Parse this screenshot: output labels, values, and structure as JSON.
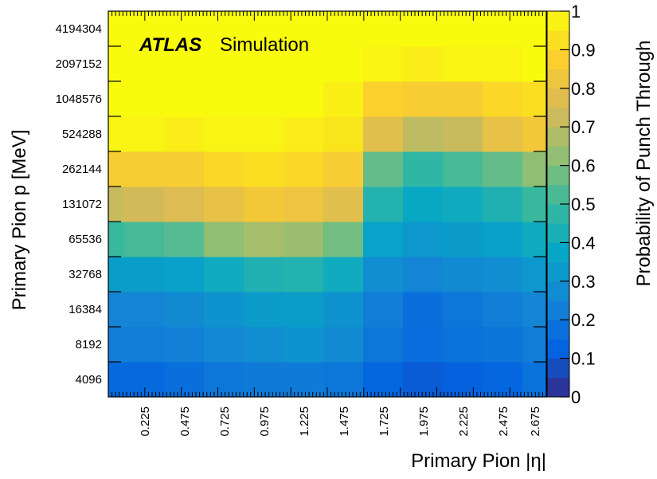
{
  "chart_data": {
    "type": "heatmap",
    "title": "",
    "brand": {
      "experiment": "ATLAS",
      "tag": "Simulation"
    },
    "xlabel": "Primary Pion |η|",
    "ylabel": "Primary Pion p [MeV]",
    "colorbar_label": "Probability of Punch Through",
    "x_edges": [
      0,
      0.1,
      0.35,
      0.6,
      0.85,
      1.1,
      1.35,
      1.6,
      1.85,
      2.1,
      2.35,
      2.6,
      2.75
    ],
    "x_ticks": [
      "0.225",
      "0.475",
      "0.725",
      "0.975",
      "1.225",
      "1.475",
      "1.725",
      "1.975",
      "2.225",
      "2.475",
      "2.675"
    ],
    "y_labels": [
      "4096",
      "8192",
      "16384",
      "32768",
      "65536",
      "131072",
      "262144",
      "524288",
      "1048576",
      "2097152",
      "4194304"
    ],
    "values": [
      [
        0.15,
        0.15,
        0.17,
        0.2,
        0.21,
        0.21,
        0.2,
        0.14,
        0.11,
        0.12,
        0.14,
        0.18
      ],
      [
        0.22,
        0.22,
        0.23,
        0.26,
        0.28,
        0.3,
        0.27,
        0.2,
        0.16,
        0.18,
        0.19,
        0.22
      ],
      [
        0.25,
        0.25,
        0.27,
        0.3,
        0.33,
        0.34,
        0.3,
        0.22,
        0.17,
        0.2,
        0.22,
        0.25
      ],
      [
        0.34,
        0.34,
        0.35,
        0.4,
        0.44,
        0.45,
        0.4,
        0.28,
        0.25,
        0.27,
        0.28,
        0.32
      ],
      [
        0.5,
        0.52,
        0.54,
        0.62,
        0.66,
        0.64,
        0.58,
        0.36,
        0.32,
        0.33,
        0.35,
        0.4
      ],
      [
        0.72,
        0.74,
        0.76,
        0.8,
        0.84,
        0.82,
        0.78,
        0.45,
        0.38,
        0.4,
        0.44,
        0.5
      ],
      [
        0.86,
        0.86,
        0.86,
        0.9,
        0.92,
        0.9,
        0.86,
        0.56,
        0.48,
        0.52,
        0.56,
        0.62
      ],
      [
        0.98,
        0.98,
        0.96,
        0.98,
        0.98,
        0.96,
        0.94,
        0.78,
        0.7,
        0.72,
        0.8,
        0.84
      ],
      [
        1.0,
        1.0,
        1.0,
        1.0,
        1.0,
        1.0,
        0.97,
        0.88,
        0.86,
        0.86,
        0.9,
        0.92
      ],
      [
        1.0,
        1.0,
        1.0,
        1.0,
        1.0,
        1.0,
        1.0,
        0.98,
        0.96,
        0.98,
        0.98,
        1.0
      ],
      [
        1.0,
        1.0,
        1.0,
        1.0,
        1.0,
        1.0,
        1.0,
        1.0,
        1.0,
        1.0,
        1.0,
        1.0
      ]
    ],
    "zlim": [
      0,
      1
    ],
    "colorbar_ticks": [
      "0",
      "0.1",
      "0.2",
      "0.3",
      "0.4",
      "0.5",
      "0.6",
      "0.7",
      "0.8",
      "0.9",
      "1"
    ],
    "grid": false,
    "colormap": [
      "#352a87",
      "#0363e1",
      "#1485d4",
      "#06a7c6",
      "#38b99e",
      "#92bf73",
      "#d9ba56",
      "#fcce2e",
      "#f9fb0e"
    ]
  }
}
